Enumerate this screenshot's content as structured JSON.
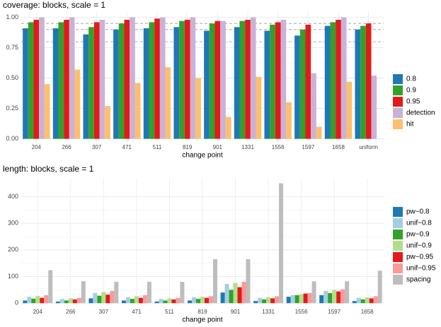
{
  "chart_data": [
    {
      "type": "bar",
      "title": "coverage: blocks, scale = 1",
      "x_label": "change point",
      "categories": [
        "204",
        "266",
        "307",
        "471",
        "511",
        "819",
        "901",
        "1331",
        "1556",
        "1597",
        "1658",
        "uniform"
      ],
      "series": [
        {
          "name": "0.8",
          "color": "#1f78b4",
          "values": [
            0.91,
            0.91,
            0.86,
            0.9,
            0.91,
            0.92,
            0.89,
            0.92,
            0.89,
            0.85,
            0.93,
            0.9
          ]
        },
        {
          "name": "0.9",
          "color": "#33a02c",
          "values": [
            0.96,
            0.96,
            0.92,
            0.95,
            0.96,
            0.97,
            0.95,
            0.97,
            0.94,
            0.9,
            0.96,
            0.93
          ]
        },
        {
          "name": "0.95",
          "color": "#e31a1c",
          "values": [
            0.98,
            0.98,
            0.96,
            0.98,
            0.99,
            0.98,
            0.97,
            0.98,
            0.96,
            0.94,
            0.98,
            0.95
          ]
        },
        {
          "name": "detection",
          "color": "#cab2d6",
          "values": [
            1.0,
            1.0,
            0.98,
            1.0,
            1.0,
            1.0,
            0.97,
            1.0,
            0.98,
            0.54,
            1.0,
            0.52
          ]
        },
        {
          "name": "hit",
          "color": "#fdbf6f",
          "values": [
            0.45,
            0.57,
            0.27,
            0.46,
            0.59,
            0.5,
            0.18,
            0.51,
            0.3,
            0.1,
            0.47,
            null
          ]
        }
      ],
      "ylim": [
        -0.02,
        1.05
      ],
      "yticks": [
        {
          "value": 0,
          "label": "0.00"
        },
        {
          "value": 0.25,
          "label": "0.25"
        },
        {
          "value": 0.5,
          "label": "0.50"
        },
        {
          "value": 0.75,
          "label": "0.75"
        },
        {
          "value": 1,
          "label": "1.00"
        }
      ],
      "hlines": [
        0.8,
        0.9,
        0.95
      ],
      "grid": true,
      "legend": "right"
    },
    {
      "type": "bar",
      "title": "length: blocks, scale = 1",
      "x_label": "change point",
      "categories": [
        "204",
        "266",
        "307",
        "471",
        "511",
        "819",
        "901",
        "1331",
        "1556",
        "1597",
        "1658"
      ],
      "series": [
        {
          "name": "pw−0.8",
          "color": "#1f78b4",
          "values": [
            10,
            6,
            18,
            10,
            6,
            10,
            40,
            8,
            24,
            30,
            8
          ]
        },
        {
          "name": "unif−0.8",
          "color": "#a6cee3",
          "values": [
            24,
            16,
            38,
            22,
            16,
            22,
            72,
            20,
            30,
            46,
            20
          ]
        },
        {
          "name": "pw−0.9",
          "color": "#33a02c",
          "values": [
            17,
            10,
            28,
            16,
            10,
            16,
            50,
            14,
            30,
            38,
            14
          ]
        },
        {
          "name": "unif−0.9",
          "color": "#b2df8a",
          "values": [
            27,
            18,
            42,
            26,
            18,
            24,
            76,
            22,
            34,
            50,
            22
          ]
        },
        {
          "name": "pw−0.95",
          "color": "#e31a1c",
          "values": [
            20,
            14,
            32,
            20,
            14,
            20,
            60,
            18,
            36,
            44,
            18
          ]
        },
        {
          "name": "unif−0.95",
          "color": "#fb9a99",
          "values": [
            30,
            20,
            46,
            30,
            20,
            26,
            80,
            26,
            38,
            52,
            26
          ]
        },
        {
          "name": "spacing",
          "color": "#bdbdbd",
          "values": [
            124,
            82,
            80,
            80,
            80,
            165,
            165,
            450,
            82,
            82,
            122
          ]
        }
      ],
      "ylim": [
        -10,
        470
      ],
      "yticks": [
        0,
        100,
        200,
        300,
        400
      ],
      "grid": true,
      "legend": "right"
    }
  ]
}
